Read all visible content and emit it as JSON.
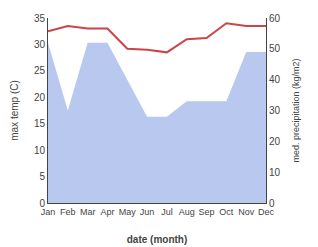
{
  "chart_data": {
    "type": "line",
    "xlabel": "date (month)",
    "ylabel": "max temp (C)",
    "y2label": "med. precipitation (kg/m2)",
    "categories": [
      "Jan",
      "Feb",
      "Mar",
      "Apr",
      "May",
      "Jun",
      "Jul",
      "Aug",
      "Sep",
      "Oct",
      "Nov",
      "Dec"
    ],
    "series": [
      {
        "type": "area",
        "color": "#b8c8ee",
        "axis": "y2",
        "values": [
          52,
          30,
          52,
          52,
          40,
          28,
          28,
          33,
          33,
          33,
          49,
          49
        ]
      },
      {
        "type": "line",
        "color": "#cc4444",
        "values": [
          32.5,
          33.5,
          33.0,
          33.0,
          29.2,
          29.0,
          28.5,
          31.0,
          31.2,
          34.0,
          33.5,
          33.5
        ]
      }
    ],
    "ylim": [
      0,
      35
    ],
    "yticks": [
      0,
      5,
      10,
      15,
      20,
      25,
      30,
      35
    ],
    "y2lim": [
      0,
      60
    ],
    "y2ticks": [
      0,
      10,
      20,
      30,
      40,
      50,
      60
    ],
    "grid": false
  }
}
